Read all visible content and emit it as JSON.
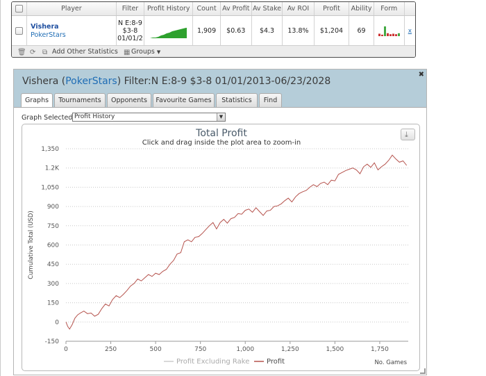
{
  "stats": {
    "headers": [
      "Player",
      "Filter",
      "Profit History",
      "Count",
      "Av Profit",
      "Av Stake",
      "Av ROI",
      "Profit",
      "Ability",
      "Form"
    ],
    "row": {
      "player_name": "Vishera",
      "player_site": "PokerStars",
      "filter_lines": [
        "N E:8-9",
        "$3-8",
        "01/01/2"
      ],
      "count": "1,909",
      "av_profit": "$0.63",
      "av_stake": "$4.3",
      "av_roi": "13.8%",
      "profit": "$1,204",
      "ability": "69",
      "remove_link": "x",
      "form_bars": [
        0.25,
        0.15,
        1.0,
        0.3,
        0.2,
        0.25,
        0.2,
        0.3
      ],
      "form_colors": [
        "#cc3333",
        "#cc3333",
        "#44aa44",
        "#cc3333",
        "#cc3333",
        "#cc3333",
        "#cc3333",
        "#44aa44"
      ]
    },
    "toolbar": {
      "add_label": "Add Other Statistics",
      "groups_label": "Groups"
    }
  },
  "graph_window": {
    "title_player": "Vishera",
    "title_site": "PokerStars",
    "title_filter": "Filter:N E:8-9 $3-8 01/01/2013-06/23/2028",
    "tabs": [
      "Graphs",
      "Tournaments",
      "Opponents",
      "Favourite Games",
      "Statistics",
      "Find"
    ],
    "active_tab": 0,
    "graph_selected_label": "Graph Selected:",
    "graph_selected_value": "Profit History"
  },
  "chart_data": {
    "type": "line",
    "title": "Total Profit",
    "subtitle": "Click and drag inside the plot area to zoom-in",
    "xlabel": "No. Games",
    "ylabel": "Cumulative Total (USD)",
    "xlim": [
      0,
      1909
    ],
    "ylim": [
      -150,
      1350
    ],
    "x_ticks": [
      0,
      250,
      500,
      750,
      1000,
      1250,
      1500,
      1750
    ],
    "x_tick_labels": [
      "0",
      "250",
      "500",
      "750",
      "1,000",
      "1,250",
      "1,500",
      "1,750"
    ],
    "y_ticks": [
      -150,
      0,
      150,
      300,
      450,
      600,
      750,
      900,
      1050,
      1200,
      1350
    ],
    "y_tick_labels": [
      "-150",
      "0",
      "150",
      "300",
      "450",
      "600",
      "750",
      "900",
      "1,050",
      "1.2K",
      "1,350"
    ],
    "grid": true,
    "legend_position": "bottom-center",
    "series": [
      {
        "name": "Profit Excluding Rake",
        "color": "#cccccc",
        "x": [],
        "y": []
      },
      {
        "name": "Profit",
        "color": "#b5524c",
        "x": [
          0,
          10,
          20,
          35,
          50,
          65,
          80,
          100,
          120,
          140,
          160,
          180,
          200,
          220,
          240,
          260,
          280,
          300,
          320,
          340,
          360,
          380,
          400,
          420,
          440,
          460,
          480,
          500,
          520,
          540,
          560,
          580,
          600,
          620,
          640,
          660,
          680,
          700,
          720,
          740,
          760,
          780,
          800,
          820,
          840,
          860,
          880,
          900,
          920,
          940,
          960,
          980,
          1000,
          1020,
          1040,
          1060,
          1080,
          1100,
          1120,
          1140,
          1160,
          1180,
          1200,
          1220,
          1240,
          1260,
          1280,
          1300,
          1320,
          1340,
          1360,
          1380,
          1400,
          1420,
          1440,
          1460,
          1480,
          1500,
          1520,
          1540,
          1560,
          1580,
          1600,
          1620,
          1640,
          1660,
          1680,
          1700,
          1720,
          1740,
          1760,
          1780,
          1800,
          1820,
          1840,
          1860,
          1880,
          1900
        ],
        "y": [
          0,
          -35,
          -55,
          -20,
          30,
          55,
          70,
          85,
          65,
          70,
          45,
          60,
          105,
          140,
          125,
          175,
          205,
          190,
          215,
          245,
          280,
          300,
          335,
          320,
          345,
          370,
          355,
          380,
          370,
          395,
          410,
          450,
          480,
          530,
          540,
          625,
          640,
          625,
          660,
          665,
          690,
          720,
          750,
          775,
          725,
          775,
          800,
          770,
          805,
          815,
          845,
          840,
          870,
          880,
          855,
          890,
          860,
          830,
          865,
          870,
          900,
          905,
          920,
          945,
          965,
          935,
          975,
          1000,
          1015,
          1025,
          1050,
          1070,
          1055,
          1080,
          1090,
          1070,
          1105,
          1100,
          1150,
          1165,
          1180,
          1190,
          1200,
          1185,
          1155,
          1210,
          1230,
          1205,
          1240,
          1185,
          1210,
          1230,
          1260,
          1300,
          1270,
          1245,
          1255,
          1220
        ]
      }
    ]
  }
}
